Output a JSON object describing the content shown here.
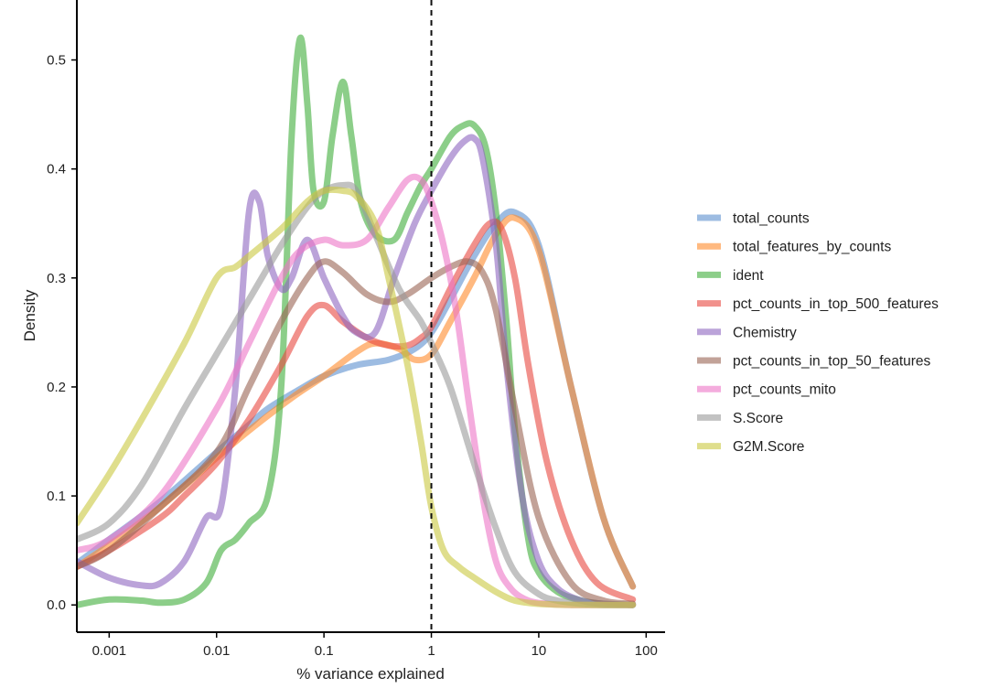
{
  "chart_data": {
    "type": "line",
    "xlabel": "% variance explained",
    "ylabel": "Density",
    "xscale": "log10",
    "xlim": [
      0.0005,
      150
    ],
    "ylim": [
      -0.025,
      0.555
    ],
    "xticks": [
      {
        "value": 0.001,
        "label": "0.001"
      },
      {
        "value": 0.01,
        "label": "0.01"
      },
      {
        "value": 0.1,
        "label": "0.1"
      },
      {
        "value": 1,
        "label": "1"
      },
      {
        "value": 10,
        "label": "10"
      },
      {
        "value": 100,
        "label": "100"
      }
    ],
    "yticks": [
      {
        "value": 0.0,
        "label": "0.0"
      },
      {
        "value": 0.1,
        "label": "0.1"
      },
      {
        "value": 0.2,
        "label": "0.2"
      },
      {
        "value": 0.3,
        "label": "0.3"
      },
      {
        "value": 0.4,
        "label": "0.4"
      },
      {
        "value": 0.5,
        "label": "0.5"
      }
    ],
    "vline": {
      "x": 1,
      "style": "dashed"
    },
    "legend": {
      "position": "right"
    },
    "series": [
      {
        "name": "total_counts",
        "color": "#5b8fcf",
        "x": [
          0.0005,
          0.001,
          0.003,
          0.01,
          0.02,
          0.03,
          0.06,
          0.1,
          0.2,
          0.4,
          0.7,
          1.0,
          1.5,
          2.5,
          4.0,
          6.0,
          10,
          20,
          40,
          75
        ],
        "y": [
          0.038,
          0.06,
          0.095,
          0.14,
          0.165,
          0.18,
          0.198,
          0.21,
          0.22,
          0.225,
          0.235,
          0.25,
          0.28,
          0.32,
          0.35,
          0.36,
          0.33,
          0.2,
          0.08,
          0.017
        ]
      },
      {
        "name": "total_features_by_counts",
        "color": "#ff8a2b",
        "x": [
          0.0005,
          0.001,
          0.003,
          0.01,
          0.02,
          0.05,
          0.1,
          0.2,
          0.3,
          0.5,
          0.7,
          1.0,
          1.5,
          2.5,
          4.0,
          6.0,
          10,
          20,
          40,
          75
        ],
        "y": [
          0.035,
          0.055,
          0.09,
          0.135,
          0.16,
          0.19,
          0.21,
          0.232,
          0.24,
          0.235,
          0.225,
          0.23,
          0.26,
          0.3,
          0.34,
          0.355,
          0.325,
          0.2,
          0.08,
          0.017
        ]
      },
      {
        "name": "ident",
        "color": "#3fae3a",
        "x": [
          0.0005,
          0.001,
          0.002,
          0.003,
          0.005,
          0.008,
          0.011,
          0.015,
          0.02,
          0.03,
          0.04,
          0.05,
          0.06,
          0.07,
          0.08,
          0.1,
          0.12,
          0.15,
          0.18,
          0.22,
          0.3,
          0.45,
          0.6,
          0.8,
          1.0,
          1.5,
          2.0,
          2.5,
          3.2,
          4.0,
          5.0,
          6.0,
          8.0,
          10,
          15,
          25,
          40,
          75
        ],
        "y": [
          0.0,
          0.005,
          0.004,
          0.002,
          0.005,
          0.02,
          0.05,
          0.06,
          0.075,
          0.1,
          0.2,
          0.43,
          0.52,
          0.46,
          0.38,
          0.37,
          0.43,
          0.48,
          0.43,
          0.37,
          0.34,
          0.335,
          0.36,
          0.385,
          0.4,
          0.43,
          0.44,
          0.44,
          0.42,
          0.36,
          0.26,
          0.16,
          0.06,
          0.03,
          0.012,
          0.004,
          0.001,
          0.0
        ]
      },
      {
        "name": "pct_counts_in_top_500_features",
        "color": "#e8483f",
        "x": [
          0.0005,
          0.001,
          0.003,
          0.005,
          0.01,
          0.02,
          0.04,
          0.07,
          0.1,
          0.15,
          0.25,
          0.4,
          0.6,
          0.8,
          1.0,
          1.5,
          2.5,
          3.5,
          4.5,
          6.0,
          8.0,
          12,
          20,
          35,
          75
        ],
        "y": [
          0.035,
          0.05,
          0.08,
          0.1,
          0.13,
          0.17,
          0.22,
          0.265,
          0.275,
          0.26,
          0.245,
          0.238,
          0.238,
          0.245,
          0.255,
          0.29,
          0.33,
          0.35,
          0.345,
          0.3,
          0.22,
          0.13,
          0.06,
          0.02,
          0.005
        ]
      },
      {
        "name": "Chemistry",
        "color": "#8e66c0",
        "x": [
          0.0005,
          0.001,
          0.002,
          0.003,
          0.005,
          0.008,
          0.011,
          0.015,
          0.02,
          0.025,
          0.03,
          0.04,
          0.05,
          0.07,
          0.1,
          0.15,
          0.2,
          0.3,
          0.45,
          0.7,
          1.0,
          1.5,
          2.0,
          2.5,
          3.0,
          4.0,
          5.0,
          7.0,
          10,
          15,
          25,
          40,
          75
        ],
        "y": [
          0.04,
          0.025,
          0.018,
          0.02,
          0.04,
          0.08,
          0.09,
          0.2,
          0.36,
          0.37,
          0.32,
          0.29,
          0.3,
          0.335,
          0.3,
          0.265,
          0.25,
          0.25,
          0.3,
          0.35,
          0.38,
          0.41,
          0.425,
          0.428,
          0.41,
          0.33,
          0.22,
          0.1,
          0.04,
          0.015,
          0.004,
          0.001,
          0.0
        ]
      },
      {
        "name": "pct_counts_in_top_50_features",
        "color": "#9a6453",
        "x": [
          0.0005,
          0.001,
          0.003,
          0.01,
          0.02,
          0.04,
          0.07,
          0.1,
          0.15,
          0.25,
          0.4,
          0.6,
          1.0,
          1.5,
          2.2,
          3.0,
          4.0,
          6.0,
          10,
          20,
          40,
          75
        ],
        "y": [
          0.035,
          0.05,
          0.09,
          0.14,
          0.2,
          0.26,
          0.3,
          0.315,
          0.305,
          0.285,
          0.278,
          0.285,
          0.3,
          0.31,
          0.315,
          0.305,
          0.27,
          0.18,
          0.08,
          0.02,
          0.004,
          0.001
        ]
      },
      {
        "name": "pct_counts_mito",
        "color": "#ed75c6",
        "x": [
          0.0005,
          0.001,
          0.003,
          0.01,
          0.02,
          0.04,
          0.06,
          0.1,
          0.15,
          0.25,
          0.4,
          0.6,
          0.8,
          1.0,
          1.3,
          1.7,
          2.2,
          3.0,
          4.0,
          5.5,
          8.0,
          12,
          20,
          40,
          75
        ],
        "y": [
          0.05,
          0.06,
          0.1,
          0.18,
          0.24,
          0.3,
          0.325,
          0.335,
          0.33,
          0.335,
          0.365,
          0.39,
          0.39,
          0.37,
          0.33,
          0.27,
          0.19,
          0.1,
          0.04,
          0.015,
          0.004,
          0.001,
          0.0,
          0.0,
          0.0
        ]
      },
      {
        "name": "S.Score",
        "color": "#999999",
        "x": [
          0.0005,
          0.001,
          0.002,
          0.005,
          0.01,
          0.02,
          0.04,
          0.07,
          0.1,
          0.15,
          0.2,
          0.3,
          0.5,
          0.8,
          1.0,
          1.5,
          2.5,
          4.0,
          6.0,
          10,
          15,
          25,
          40,
          75
        ],
        "y": [
          0.06,
          0.075,
          0.11,
          0.18,
          0.23,
          0.28,
          0.33,
          0.365,
          0.38,
          0.385,
          0.38,
          0.34,
          0.29,
          0.26,
          0.24,
          0.2,
          0.13,
          0.07,
          0.03,
          0.01,
          0.004,
          0.001,
          0.0,
          0.0
        ]
      },
      {
        "name": "G2M.Score",
        "color": "#c9c83f",
        "x": [
          0.0005,
          0.001,
          0.002,
          0.005,
          0.01,
          0.015,
          0.02,
          0.04,
          0.07,
          0.1,
          0.15,
          0.2,
          0.3,
          0.4,
          0.6,
          0.8,
          1.0,
          1.3,
          1.8,
          2.5,
          4.0,
          6.0,
          10,
          20,
          40,
          75
        ],
        "y": [
          0.075,
          0.12,
          0.17,
          0.24,
          0.3,
          0.31,
          0.32,
          0.345,
          0.37,
          0.38,
          0.38,
          0.375,
          0.35,
          0.3,
          0.22,
          0.15,
          0.09,
          0.05,
          0.035,
          0.025,
          0.012,
          0.004,
          0.001,
          0.0,
          0.0,
          0.0
        ]
      }
    ]
  }
}
